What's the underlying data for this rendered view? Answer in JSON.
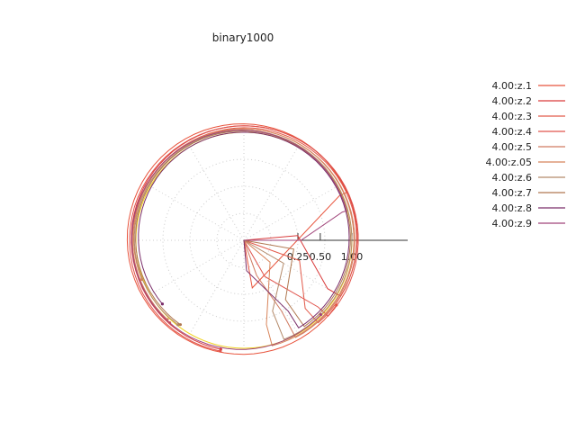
{
  "chart_data": {
    "type": "polar-line",
    "title": "binary1000",
    "radial_ticks": [
      "0.25",
      "0.50",
      "1.00"
    ],
    "radial_tick_values": [
      0.25,
      0.5,
      1.0
    ],
    "radial_scale": "sqrt",
    "reference_circle_radius": 1.0,
    "reference_circle_color": "#f0d21e",
    "grid": true,
    "legend_position": "top-right",
    "series": [
      {
        "name": "4.00:z.1",
        "color": "#e8533c",
        "tip_r": 0.95,
        "tip_a": 25,
        "end_r": 0.2,
        "end_a": -80,
        "outer_r": 1.1,
        "phase": 0
      },
      {
        "name": "4.00:z.2",
        "color": "#d93a3a",
        "tip_r": 0.8,
        "tip_a": -30,
        "end_r": 0.25,
        "end_a": 5,
        "outer_r": 1.06,
        "phase": 30
      },
      {
        "name": "4.00:z.3",
        "color": "#e25a4a",
        "tip_r": 0.72,
        "tip_a": -48,
        "end_r": 0.3,
        "end_a": -20,
        "outer_r": 1.04,
        "phase": 60
      },
      {
        "name": "4.00:z.4",
        "color": "#e0544c",
        "tip_r": 0.85,
        "tip_a": -42,
        "end_r": 0.15,
        "end_a": -60,
        "outer_r": 1.08,
        "phase": 90
      },
      {
        "name": "4.00:z.5",
        "color": "#d07a60",
        "tip_r": 0.55,
        "tip_a": -62,
        "end_r": 0.12,
        "end_a": -70,
        "outer_r": 1.02,
        "phase": 120
      },
      {
        "name": "4.00:z.05",
        "color": "#d8845a",
        "tip_r": 0.65,
        "tip_a": -75,
        "end_r": 0.1,
        "end_a": -40,
        "outer_r": 1.01,
        "phase": 150
      },
      {
        "name": "4.00:z.6",
        "color": "#b48a6a",
        "tip_r": 0.5,
        "tip_a": -68,
        "end_r": 0.18,
        "end_a": -30,
        "outer_r": 0.98,
        "phase": 180
      },
      {
        "name": "4.00:z.7",
        "color": "#b07850",
        "tip_r": 0.45,
        "tip_a": -55,
        "end_r": 0.22,
        "end_a": -10,
        "outer_r": 0.96,
        "phase": 210
      },
      {
        "name": "4.00:z.8",
        "color": "#7a2e6a",
        "tip_r": 0.6,
        "tip_a": -58,
        "end_r": 0.08,
        "end_a": -85,
        "outer_r": 0.93,
        "phase": 240
      },
      {
        "name": "4.00:z.9",
        "color": "#a0457a",
        "tip_r": 0.9,
        "tip_a": 16,
        "end_r": 0.28,
        "end_a": 0,
        "outer_r": 1.0,
        "phase": 270
      }
    ]
  }
}
